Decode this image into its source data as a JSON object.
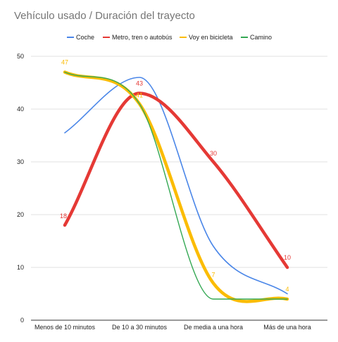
{
  "chart_data": {
    "type": "line",
    "title": "Vehículo usado / Duración del trayecto",
    "categories": [
      "Menos de 10 minutos",
      "De 10 a 30 minutos",
      "De media a una hora",
      "Más de una hora"
    ],
    "ylim": [
      0,
      50
    ],
    "yticks": [
      0,
      10,
      20,
      30,
      40,
      50
    ],
    "grid": true,
    "legend_position": "top",
    "smooth": true,
    "series": [
      {
        "name": "Coche",
        "color": "#4a86e8",
        "values": [
          35.5,
          46,
          14,
          5
        ],
        "labels": [
          null,
          null,
          null,
          null
        ]
      },
      {
        "name": "Metro, tren o autobús",
        "color": "#e53935",
        "values": [
          18,
          43,
          30,
          10
        ],
        "labels": [
          "18",
          "43",
          "30",
          "10"
        ]
      },
      {
        "name": "Voy en bicicleta",
        "color": "#fbbc04",
        "values": [
          47,
          41,
          7,
          4
        ],
        "labels": [
          "47",
          "41",
          "7",
          "4"
        ]
      },
      {
        "name": "Camino",
        "color": "#34a853",
        "values": [
          47,
          41,
          4,
          4
        ],
        "labels": [
          null,
          null,
          null,
          null
        ]
      }
    ]
  }
}
